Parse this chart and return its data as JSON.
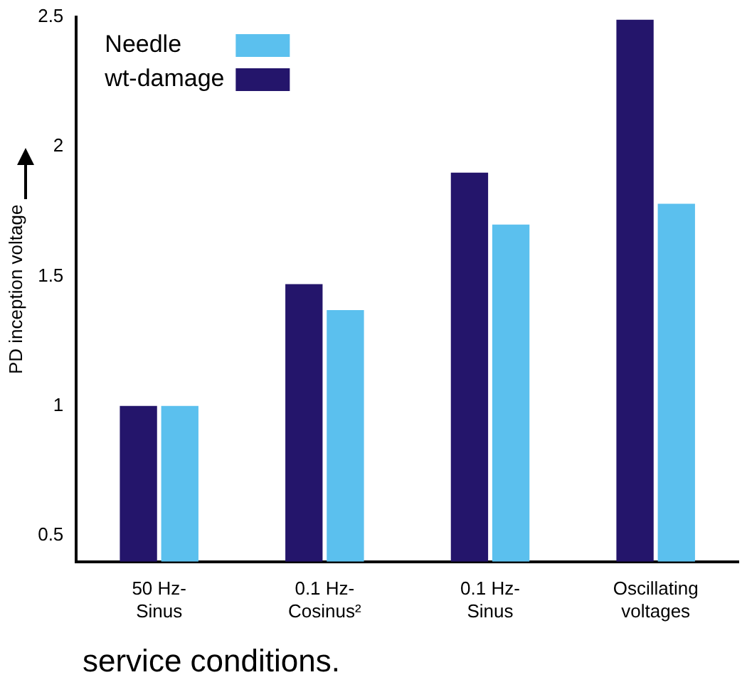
{
  "chart_data": {
    "type": "bar",
    "ylabel": "PD inception voltage",
    "categories": [
      "50 Hz-Sinus",
      "0.1 Hz-Cosinus²",
      "0.1 Hz-Sinus",
      "Oscillating voltages"
    ],
    "series": [
      {
        "name": "wt-damage",
        "color": "#24156b",
        "values": [
          1.0,
          1.47,
          1.9,
          2.49
        ]
      },
      {
        "name": "Needle",
        "color": "#5bc0ee",
        "values": [
          1.0,
          1.37,
          1.7,
          1.78
        ]
      }
    ],
    "ylim": [
      0.4,
      2.5
    ],
    "yticks": [
      0.5,
      1,
      1.5,
      2,
      2.5
    ],
    "grid": false,
    "legend": "top left",
    "annotations": [
      "service conditions."
    ]
  }
}
